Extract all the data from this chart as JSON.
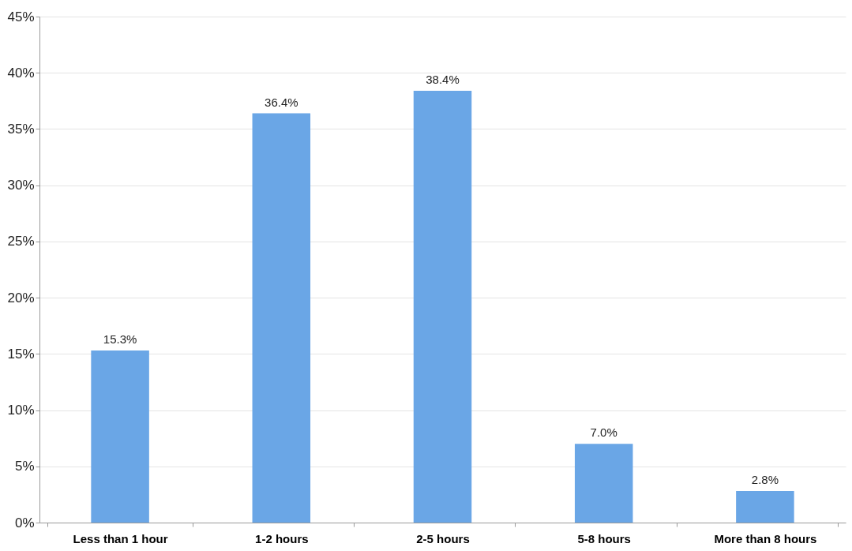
{
  "chart_data": {
    "type": "bar",
    "categories": [
      "Less than 1 hour",
      "1-2 hours",
      "2-5 hours",
      "5-8 hours",
      "More than 8 hours"
    ],
    "values": [
      15.3,
      36.4,
      38.4,
      7.0,
      2.8
    ],
    "value_labels": [
      "15.3%",
      "36.4%",
      "38.4%",
      "7.0%",
      "2.8%"
    ],
    "color": "#6aa6e6",
    "ylim": [
      0,
      45
    ],
    "yticks": [
      {
        "value": 0,
        "label": "0%"
      },
      {
        "value": 5,
        "label": "5%"
      },
      {
        "value": 10,
        "label": "10%"
      },
      {
        "value": 15,
        "label": "15%"
      },
      {
        "value": 20,
        "label": "20%"
      },
      {
        "value": 25,
        "label": "25%"
      },
      {
        "value": 30,
        "label": "30%"
      },
      {
        "value": 35,
        "label": "35%"
      },
      {
        "value": 40,
        "label": "40%"
      },
      {
        "value": 45,
        "label": "45%"
      }
    ],
    "grid": "y"
  }
}
